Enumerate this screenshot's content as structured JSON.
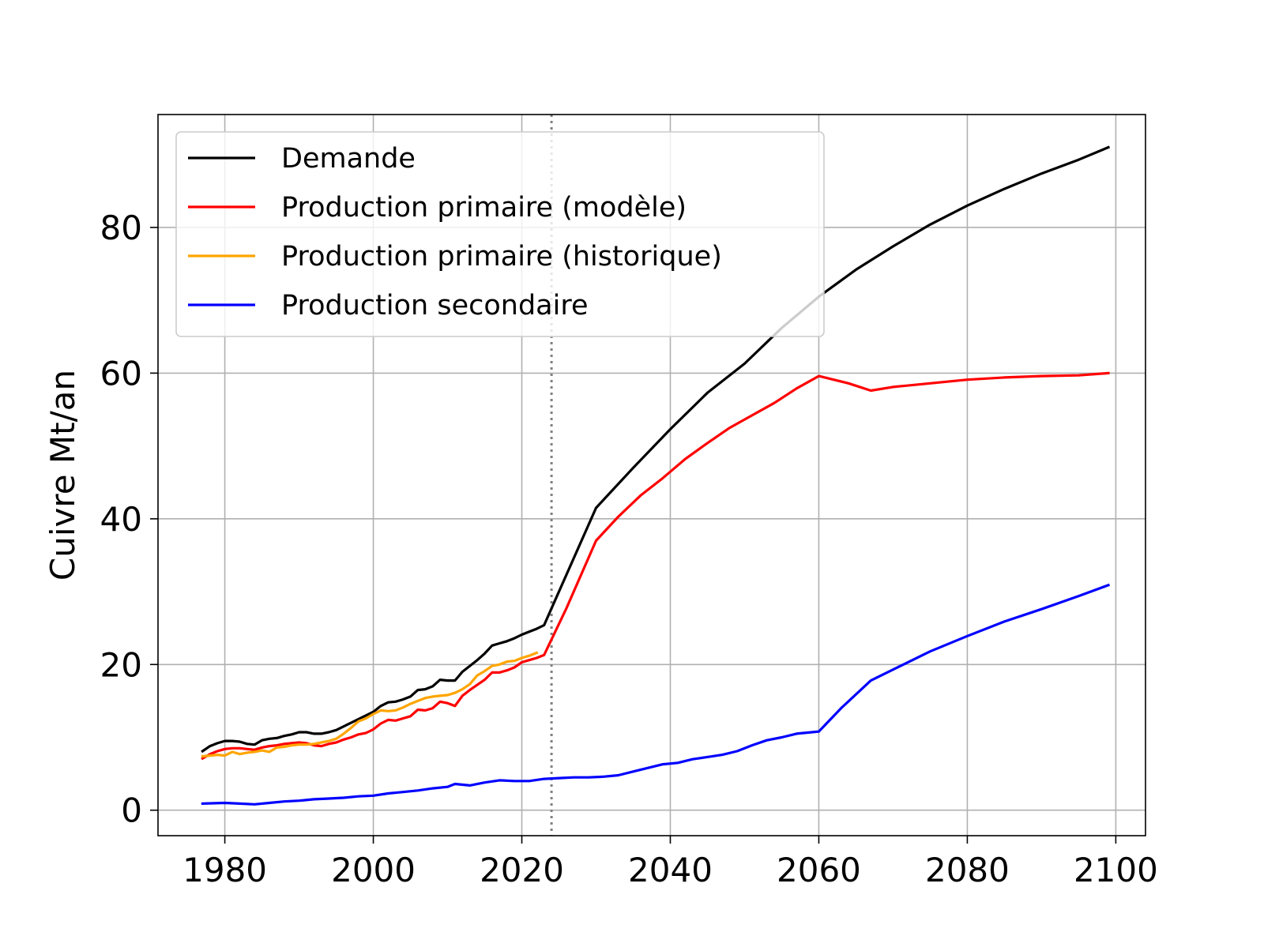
{
  "chart_data": {
    "type": "line",
    "title": "",
    "xlabel": "",
    "ylabel": "Cuivre Mt/an",
    "xlim": [
      1971,
      2104
    ],
    "ylim": [
      -3.5,
      95.5
    ],
    "xticks": [
      1980,
      2000,
      2020,
      2040,
      2060,
      2080,
      2100
    ],
    "yticks": [
      0,
      20,
      40,
      60,
      80
    ],
    "grid": true,
    "legend_position": "upper-left",
    "vline": {
      "x": 2024,
      "style": "dotted",
      "color": "#808080"
    },
    "series": [
      {
        "name": "Demande",
        "color": "#000000",
        "x": [
          1977,
          1978,
          1979,
          1980,
          1981,
          1982,
          1983,
          1984,
          1985,
          1986,
          1987,
          1988,
          1989,
          1990,
          1991,
          1992,
          1993,
          1994,
          1995,
          1996,
          1997,
          1998,
          1999,
          2000,
          2001,
          2002,
          2003,
          2004,
          2005,
          2006,
          2007,
          2008,
          2009,
          2010,
          2011,
          2012,
          2013,
          2014,
          2015,
          2016,
          2017,
          2018,
          2019,
          2020,
          2021,
          2022,
          2023,
          2030,
          2035,
          2040,
          2045,
          2050,
          2055,
          2060,
          2065,
          2070,
          2075,
          2080,
          2085,
          2090,
          2095,
          2099
        ],
        "values": [
          8.1,
          8.8,
          9.2,
          9.5,
          9.5,
          9.4,
          9.1,
          9.0,
          9.6,
          9.8,
          9.9,
          10.2,
          10.4,
          10.7,
          10.7,
          10.5,
          10.5,
          10.7,
          11.0,
          11.5,
          12.0,
          12.5,
          13.0,
          13.5,
          14.3,
          14.8,
          14.9,
          15.2,
          15.6,
          16.5,
          16.6,
          17.0,
          17.9,
          17.8,
          17.8,
          19.0,
          19.8,
          20.6,
          21.5,
          22.6,
          22.9,
          23.2,
          23.6,
          24.1,
          24.5,
          24.9,
          25.4,
          41.5,
          47.0,
          52.3,
          57.3,
          61.3,
          66.2,
          70.5,
          74.2,
          77.4,
          80.4,
          83.0,
          85.3,
          87.4,
          89.3,
          91.0
        ]
      },
      {
        "name": "Production primaire (modèle)",
        "color": "#ff0000",
        "x": [
          1977,
          1978,
          1979,
          1980,
          1981,
          1982,
          1983,
          1984,
          1985,
          1986,
          1987,
          1988,
          1989,
          1990,
          1991,
          1992,
          1993,
          1994,
          1995,
          1996,
          1997,
          1998,
          1999,
          2000,
          2001,
          2002,
          2003,
          2004,
          2005,
          2006,
          2007,
          2008,
          2009,
          2010,
          2011,
          2012,
          2013,
          2014,
          2015,
          2016,
          2017,
          2018,
          2019,
          2020,
          2021,
          2022,
          2023,
          2026,
          2030,
          2033,
          2036,
          2039,
          2042,
          2045,
          2048,
          2051,
          2054,
          2057,
          2060,
          2064,
          2067,
          2070,
          2075,
          2080,
          2085,
          2090,
          2095,
          2099
        ],
        "values": [
          7.1,
          7.7,
          8.1,
          8.4,
          8.5,
          8.5,
          8.4,
          8.3,
          8.6,
          8.8,
          8.9,
          9.1,
          9.2,
          9.3,
          9.2,
          8.9,
          8.8,
          9.1,
          9.3,
          9.7,
          10.0,
          10.4,
          10.6,
          11.1,
          11.9,
          12.4,
          12.3,
          12.6,
          12.9,
          13.8,
          13.7,
          14.0,
          14.9,
          14.7,
          14.3,
          15.7,
          16.5,
          17.2,
          17.9,
          18.9,
          18.9,
          19.2,
          19.6,
          20.3,
          20.6,
          20.9,
          21.3,
          27.7,
          37.0,
          40.3,
          43.2,
          45.6,
          48.2,
          50.4,
          52.5,
          54.2,
          55.9,
          57.9,
          59.6,
          58.6,
          57.6,
          58.1,
          58.6,
          59.1,
          59.4,
          59.6,
          59.7,
          60.0
        ]
      },
      {
        "name": "Production primaire (historique)",
        "color": "#ffa500",
        "x": [
          1977,
          1978,
          1979,
          1980,
          1981,
          1982,
          1983,
          1984,
          1985,
          1986,
          1987,
          1988,
          1989,
          1990,
          1991,
          1992,
          1993,
          1994,
          1995,
          1996,
          1997,
          1998,
          1999,
          2000,
          2001,
          2002,
          2003,
          2004,
          2005,
          2006,
          2007,
          2008,
          2009,
          2010,
          2011,
          2012,
          2013,
          2014,
          2015,
          2016,
          2017,
          2018,
          2019,
          2020,
          2021,
          2022
        ],
        "values": [
          7.4,
          7.5,
          7.6,
          7.5,
          8.0,
          7.7,
          7.9,
          8.0,
          8.2,
          8.0,
          8.6,
          8.7,
          8.9,
          9.0,
          9.0,
          9.1,
          9.3,
          9.5,
          9.8,
          10.5,
          11.3,
          12.2,
          12.6,
          13.2,
          13.7,
          13.6,
          13.7,
          14.1,
          14.6,
          15.0,
          15.4,
          15.6,
          15.7,
          15.8,
          16.1,
          16.6,
          17.3,
          18.5,
          19.1,
          19.8,
          20.0,
          20.4,
          20.5,
          20.9,
          21.2,
          21.6
        ]
      },
      {
        "name": "Production secondaire",
        "color": "#0000ff",
        "x": [
          1977,
          1980,
          1982,
          1984,
          1986,
          1988,
          1990,
          1992,
          1994,
          1996,
          1998,
          2000,
          2002,
          2004,
          2006,
          2008,
          2010,
          2011,
          2013,
          2015,
          2017,
          2019,
          2021,
          2023,
          2025,
          2027,
          2029,
          2031,
          2033,
          2035,
          2037,
          2039,
          2041,
          2043,
          2045,
          2047,
          2049,
          2051,
          2053,
          2055,
          2057,
          2060,
          2063,
          2067,
          2070,
          2075,
          2080,
          2085,
          2090,
          2095,
          2099
        ],
        "values": [
          0.9,
          1.0,
          0.9,
          0.8,
          1.0,
          1.2,
          1.3,
          1.5,
          1.6,
          1.7,
          1.9,
          2.0,
          2.3,
          2.5,
          2.7,
          3.0,
          3.2,
          3.6,
          3.4,
          3.8,
          4.1,
          4.0,
          4.0,
          4.3,
          4.4,
          4.5,
          4.5,
          4.6,
          4.8,
          5.3,
          5.8,
          6.3,
          6.5,
          7.0,
          7.3,
          7.6,
          8.1,
          8.9,
          9.6,
          10.0,
          10.5,
          10.8,
          14.0,
          17.8,
          19.3,
          21.8,
          23.9,
          25.9,
          27.6,
          29.4,
          30.9
        ]
      }
    ]
  }
}
